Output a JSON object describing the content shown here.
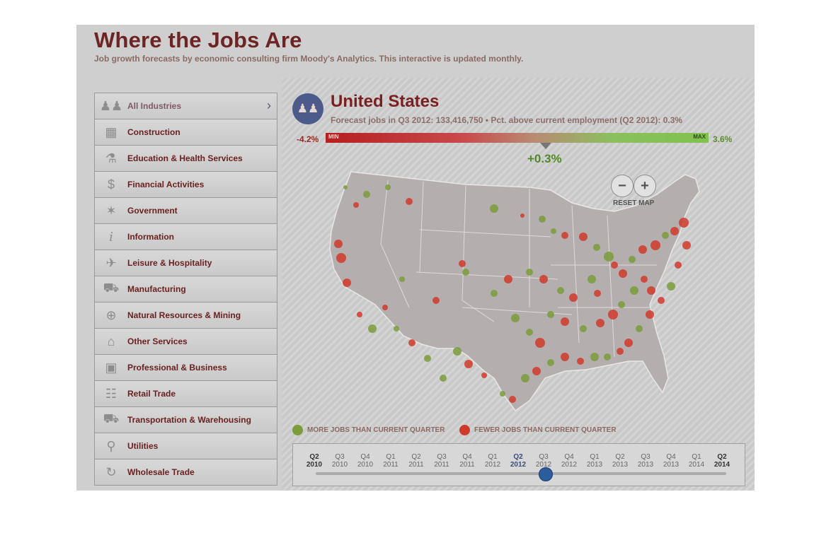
{
  "header": {
    "title": "Where the Jobs Are",
    "subtitle": "Job growth forecasts by economic consulting firm Moody's Analytics. This interactive is updated monthly."
  },
  "sidebar": {
    "items": [
      {
        "label": "All Industries",
        "icon": "people-group-icon",
        "active": true
      },
      {
        "label": "Construction",
        "icon": "barrier-icon"
      },
      {
        "label": "Education & Health Services",
        "icon": "flask-icon"
      },
      {
        "label": "Financial Activities",
        "icon": "dollar-icon"
      },
      {
        "label": "Government",
        "icon": "star-seal-icon"
      },
      {
        "label": "Information",
        "icon": "info-icon"
      },
      {
        "label": "Leisure & Hospitality",
        "icon": "airplane-icon"
      },
      {
        "label": "Manufacturing",
        "icon": "car-icon"
      },
      {
        "label": "Natural Resources & Mining",
        "icon": "crosshair-icon"
      },
      {
        "label": "Other Services",
        "icon": "house-icon"
      },
      {
        "label": "Professional & Business",
        "icon": "briefcase-icon"
      },
      {
        "label": "Retail Trade",
        "icon": "cart-icon"
      },
      {
        "label": "Transportation & Warehousing",
        "icon": "truck-icon"
      },
      {
        "label": "Utilities",
        "icon": "lightbulb-icon"
      },
      {
        "label": "Wholesale Trade",
        "icon": "recycle-icon"
      }
    ]
  },
  "region": {
    "name": "United States",
    "forecast_text": "Forecast jobs in Q3 2012: 133,416,750 • Pct. above current employment (Q2 2012): 0.3%"
  },
  "scale": {
    "min_value": "-4.2%",
    "max_value": "3.6%",
    "min_label": "MIN",
    "max_label": "MAX",
    "current_value": "+0.3%",
    "current_fraction": 0.577
  },
  "map_controls": {
    "zoom_out": "−",
    "zoom_in": "+",
    "reset": "RESET MAP"
  },
  "legend": {
    "more": {
      "label": "MORE JOBS THAN CURRENT QUARTER",
      "color": "#7a9c3a"
    },
    "fewer": {
      "label": "FEWER JOBS THAN CURRENT QUARTER",
      "color": "#d03a2c"
    }
  },
  "timeline": {
    "quarters": [
      {
        "q": "Q2",
        "y": "2010"
      },
      {
        "q": "Q3",
        "y": "2010"
      },
      {
        "q": "Q4",
        "y": "2010"
      },
      {
        "q": "Q1",
        "y": "2011"
      },
      {
        "q": "Q2",
        "y": "2011"
      },
      {
        "q": "Q3",
        "y": "2011"
      },
      {
        "q": "Q4",
        "y": "2011"
      },
      {
        "q": "Q1",
        "y": "2012"
      },
      {
        "q": "Q2",
        "y": "2012"
      },
      {
        "q": "Q3",
        "y": "2012"
      },
      {
        "q": "Q4",
        "y": "2012"
      },
      {
        "q": "Q1",
        "y": "2013"
      },
      {
        "q": "Q2",
        "y": "2013"
      },
      {
        "q": "Q3",
        "y": "2013"
      },
      {
        "q": "Q4",
        "y": "2013"
      },
      {
        "q": "Q1",
        "y": "2014"
      },
      {
        "q": "Q2",
        "y": "2014"
      }
    ],
    "current_index": 8,
    "selected_index": 9
  },
  "colors": {
    "title": "#6d2424",
    "accent": "#4c5b8a",
    "grow": "#7a9c3a",
    "shrink": "#d03a2c"
  }
}
